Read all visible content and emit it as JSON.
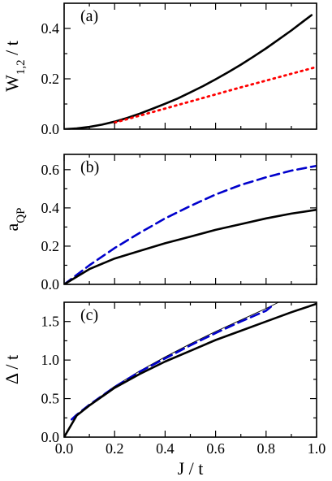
{
  "chart_data": [
    {
      "type": "line",
      "panel_label": "(a)",
      "ylabel": {
        "base": "W",
        "sub": "1,2",
        "rest": " / t"
      },
      "xlim": [
        0.0,
        1.0
      ],
      "ylim": [
        0.0,
        0.5
      ],
      "yticks": [
        "0.0",
        "0.2",
        "0.4"
      ],
      "series": [
        {
          "color": "#000000",
          "style": "solid",
          "x": [
            0.0,
            0.05,
            0.1,
            0.15,
            0.2,
            0.25,
            0.3,
            0.35,
            0.4,
            0.45,
            0.5,
            0.55,
            0.6,
            0.65,
            0.7,
            0.75,
            0.8,
            0.85,
            0.9,
            0.95,
            0.98
          ],
          "y": [
            0.0,
            0.003,
            0.009,
            0.018,
            0.03,
            0.045,
            0.062,
            0.081,
            0.101,
            0.122,
            0.146,
            0.171,
            0.198,
            0.226,
            0.256,
            0.288,
            0.321,
            0.356,
            0.392,
            0.43,
            0.453
          ]
        },
        {
          "color": "#ff0000",
          "style": "dotted",
          "x": [
            0.2,
            0.3,
            0.4,
            0.5,
            0.6,
            0.7,
            0.8,
            0.9,
            1.0
          ],
          "y": [
            0.026,
            0.054,
            0.082,
            0.11,
            0.138,
            0.166,
            0.193,
            0.22,
            0.247
          ]
        }
      ]
    },
    {
      "type": "line",
      "panel_label": "(b)",
      "ylabel": {
        "base": "a",
        "sub": "QP",
        "rest": ""
      },
      "xlim": [
        0.0,
        1.0
      ],
      "ylim": [
        0.0,
        0.68
      ],
      "yticks": [
        "0.0",
        "0.2",
        "0.4",
        "0.6"
      ],
      "series": [
        {
          "color": "#0000cc",
          "style": "dashed",
          "x": [
            0.0,
            0.1,
            0.2,
            0.3,
            0.4,
            0.5,
            0.6,
            0.7,
            0.8,
            0.9,
            1.0
          ],
          "y": [
            0.0,
            0.1,
            0.19,
            0.27,
            0.345,
            0.41,
            0.47,
            0.52,
            0.56,
            0.595,
            0.62
          ]
        },
        {
          "color": "#000000",
          "style": "solid",
          "x": [
            0.0,
            0.1,
            0.2,
            0.3,
            0.4,
            0.5,
            0.6,
            0.7,
            0.8,
            0.9,
            1.0
          ],
          "y": [
            0.0,
            0.08,
            0.135,
            0.175,
            0.215,
            0.25,
            0.285,
            0.315,
            0.345,
            0.37,
            0.39
          ]
        }
      ]
    },
    {
      "type": "line",
      "panel_label": "(c)",
      "ylabel": {
        "base": "Δ / t",
        "sub": "",
        "rest": ""
      },
      "xlabel": "J / t",
      "xlim": [
        0.0,
        1.0
      ],
      "ylim": [
        0.0,
        1.75
      ],
      "yticks": [
        "0.0",
        "0.5",
        "1.0",
        "1.5"
      ],
      "xticks": [
        "0.0",
        "0.2",
        "0.4",
        "0.6",
        "0.8",
        "1.0"
      ],
      "series": [
        {
          "color": "#000000",
          "style": "solid",
          "width": 0.9,
          "x": [
            0.0,
            0.05,
            0.1,
            0.2,
            0.3,
            0.4,
            0.5,
            0.6,
            0.7,
            0.8,
            0.85
          ],
          "y": [
            0.0,
            0.28,
            0.42,
            0.66,
            0.86,
            1.04,
            1.21,
            1.37,
            1.52,
            1.67,
            1.75
          ]
        },
        {
          "color": "#0000cc",
          "style": "dashed",
          "x": [
            0.03,
            0.05,
            0.1,
            0.2,
            0.3,
            0.4,
            0.5,
            0.6,
            0.7,
            0.8,
            0.83
          ],
          "y": [
            0.23,
            0.29,
            0.42,
            0.65,
            0.85,
            1.02,
            1.19,
            1.35,
            1.5,
            1.64,
            1.72
          ]
        },
        {
          "color": "#000000",
          "style": "solid",
          "x": [
            0.0,
            0.05,
            0.1,
            0.2,
            0.3,
            0.4,
            0.5,
            0.6,
            0.7,
            0.8,
            0.9,
            1.0
          ],
          "y": [
            0.0,
            0.28,
            0.41,
            0.64,
            0.82,
            0.98,
            1.12,
            1.26,
            1.38,
            1.5,
            1.62,
            1.73
          ]
        }
      ]
    }
  ]
}
